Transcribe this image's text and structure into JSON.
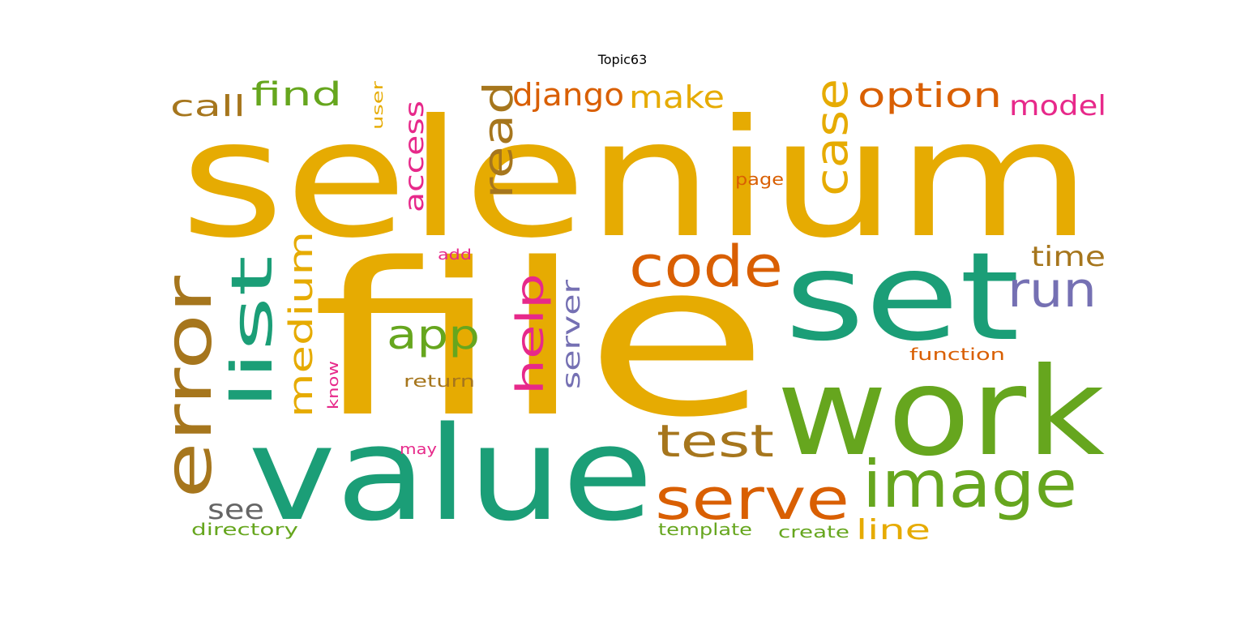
{
  "figure": {
    "title": "Topic63"
  },
  "palette": {
    "amber": "#e6ab02",
    "teal": "#1b9e77",
    "green": "#66a61e",
    "orange": "#d95f02",
    "brown": "#a6761d",
    "purple": "#7570b3",
    "pink": "#e7298a",
    "gray": "#666666"
  },
  "words": [
    {
      "text": "selenium",
      "color": "#e6ab02",
      "vertical": false
    },
    {
      "text": "file",
      "color": "#e6ab02",
      "vertical": false
    },
    {
      "text": "value",
      "color": "#1b9e77",
      "vertical": false
    },
    {
      "text": "work",
      "color": "#66a61e",
      "vertical": false
    },
    {
      "text": "set",
      "color": "#1b9e77",
      "vertical": false
    },
    {
      "text": "error",
      "color": "#a6761d",
      "vertical": true
    },
    {
      "text": "image",
      "color": "#66a61e",
      "vertical": false
    },
    {
      "text": "serve",
      "color": "#d95f02",
      "vertical": false
    },
    {
      "text": "code",
      "color": "#d95f02",
      "vertical": false
    },
    {
      "text": "list",
      "color": "#1b9e77",
      "vertical": true
    },
    {
      "text": "test",
      "color": "#a6761d",
      "vertical": false
    },
    {
      "text": "case",
      "color": "#e6ab02",
      "vertical": true
    },
    {
      "text": "read",
      "color": "#a6761d",
      "vertical": true
    },
    {
      "text": "run",
      "color": "#7570b3",
      "vertical": false
    },
    {
      "text": "medium",
      "color": "#e6ab02",
      "vertical": true
    },
    {
      "text": "help",
      "color": "#e7298a",
      "vertical": true
    },
    {
      "text": "app",
      "color": "#66a61e",
      "vertical": false
    },
    {
      "text": "option",
      "color": "#d95f02",
      "vertical": false
    },
    {
      "text": "django",
      "color": "#d95f02",
      "vertical": false
    },
    {
      "text": "make",
      "color": "#e6ab02",
      "vertical": false
    },
    {
      "text": "find",
      "color": "#66a61e",
      "vertical": false
    },
    {
      "text": "access",
      "color": "#e7298a",
      "vertical": true
    },
    {
      "text": "server",
      "color": "#7570b3",
      "vertical": true
    },
    {
      "text": "call",
      "color": "#a6761d",
      "vertical": false
    },
    {
      "text": "model",
      "color": "#e7298a",
      "vertical": false
    },
    {
      "text": "time",
      "color": "#a6761d",
      "vertical": false
    },
    {
      "text": "line",
      "color": "#e6ab02",
      "vertical": false
    },
    {
      "text": "see",
      "color": "#666666",
      "vertical": false
    },
    {
      "text": "directory",
      "color": "#66a61e",
      "vertical": false
    },
    {
      "text": "template",
      "color": "#66a61e",
      "vertical": false
    },
    {
      "text": "create",
      "color": "#66a61e",
      "vertical": false
    },
    {
      "text": "function",
      "color": "#d95f02",
      "vertical": false
    },
    {
      "text": "return",
      "color": "#a6761d",
      "vertical": false
    },
    {
      "text": "know",
      "color": "#e7298a",
      "vertical": true
    },
    {
      "text": "may",
      "color": "#e7298a",
      "vertical": false
    },
    {
      "text": "add",
      "color": "#e7298a",
      "vertical": false
    },
    {
      "text": "page",
      "color": "#d95f02",
      "vertical": false
    },
    {
      "text": "user",
      "color": "#e6ab02",
      "vertical": true
    }
  ]
}
